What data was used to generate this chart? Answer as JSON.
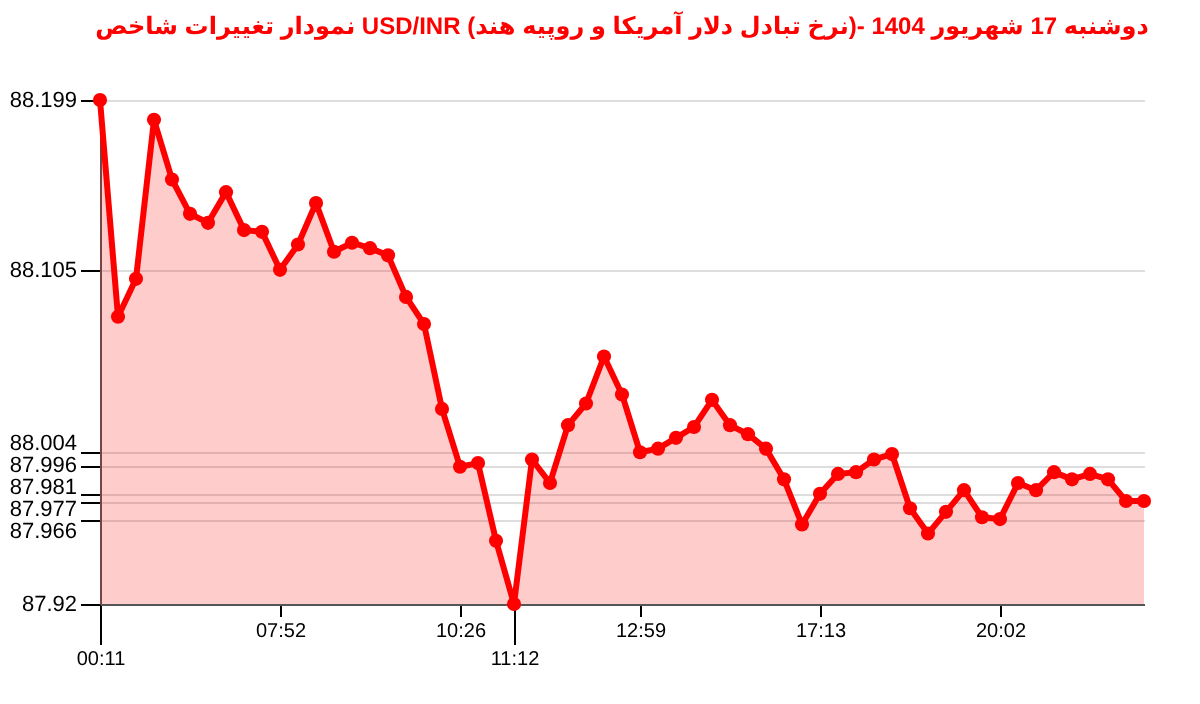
{
  "chart_data": {
    "type": "area",
    "title": "نمودار تغییرات شاخص USD/INR (نرخ تبادل دلار آمریکا و روپیه هند)- دوشنبه  17 شهریور 1404",
    "categories": [
      "00:11",
      null,
      null,
      null,
      null,
      null,
      null,
      null,
      null,
      null,
      "07:52",
      null,
      null,
      null,
      null,
      null,
      null,
      null,
      null,
      null,
      "10:26",
      null,
      null,
      "11:12",
      null,
      null,
      null,
      null,
      null,
      null,
      "12:59",
      null,
      null,
      null,
      null,
      null,
      null,
      null,
      null,
      null,
      "17:13",
      null,
      null,
      null,
      null,
      null,
      null,
      null,
      null,
      null,
      "20:02",
      null,
      null,
      null,
      null,
      null,
      null,
      null,
      null
    ],
    "series": [
      {
        "color": "#ff0000",
        "values": [
          88.199,
          88.079,
          88.1,
          88.188,
          88.155,
          88.136,
          88.131,
          88.148,
          88.127,
          88.126,
          88.105,
          88.119,
          88.142,
          88.115,
          88.12,
          88.117,
          88.113,
          88.09,
          88.075,
          88.028,
          87.996,
          87.998,
          87.955,
          87.92,
          88.0,
          87.987,
          88.019,
          88.031,
          88.057,
          88.036,
          88.004,
          88.006,
          88.012,
          88.018,
          88.033,
          88.019,
          88.014,
          88.006,
          87.989,
          87.964,
          87.981,
          87.992,
          87.993,
          88.0,
          88.003,
          87.973,
          87.959,
          87.971,
          87.983,
          87.968,
          87.967,
          87.987,
          87.983,
          87.993,
          87.989,
          87.992,
          87.989,
          87.977,
          87.977
        ]
      }
    ],
    "ylim": [
      87.92,
      88.199
    ],
    "yticks": [
      87.92,
      87.966,
      87.977,
      87.981,
      87.996,
      88.004,
      88.105,
      88.199
    ],
    "grid": "y",
    "marker": "circle",
    "line_style": "solid"
  }
}
